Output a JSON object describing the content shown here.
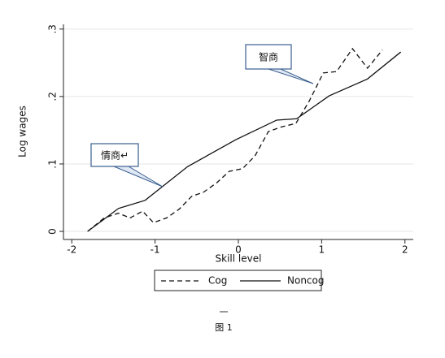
{
  "chart_data": {
    "type": "line",
    "x_label": "Skill level",
    "y_label": "Log wages",
    "xlim": [
      -2.1,
      2.1
    ],
    "ylim": [
      -0.012,
      0.307
    ],
    "xticks": [
      -2,
      -1,
      0,
      1,
      2
    ],
    "yticks": [
      0,
      {
        "value": 0.1,
        "label": ".1"
      },
      {
        "value": 0.2,
        "label": ".2"
      },
      {
        "value": 0.3,
        "label": ".3"
      }
    ],
    "grid": true,
    "series": [
      {
        "name": "Cog",
        "color": "#111111",
        "dash": true,
        "x": [
          -1.81,
          -1.61,
          -1.44,
          -1.3,
          -1.15,
          -1.02,
          -0.86,
          -0.71,
          -0.56,
          -0.42,
          -0.26,
          -0.11,
          0.05,
          0.2,
          0.36,
          0.52,
          0.69,
          0.85,
          1.02,
          1.18,
          1.37,
          1.55,
          1.73
        ],
        "values": [
          0,
          0.02,
          0.027,
          0.02,
          0.03,
          0.013,
          0.02,
          0.033,
          0.052,
          0.058,
          0.072,
          0.089,
          0.093,
          0.112,
          0.148,
          0.155,
          0.16,
          0.193,
          0.235,
          0.237,
          0.271,
          0.242,
          0.269
        ]
      },
      {
        "name": "Noncog",
        "color": "#111111",
        "dash": false,
        "x": [
          -1.81,
          -1.44,
          -1.12,
          -0.61,
          -0.03,
          0.46,
          0.7,
          1.09,
          1.55,
          1.95
        ],
        "values": [
          0,
          0.034,
          0.046,
          0.096,
          0.136,
          0.165,
          0.167,
          0.201,
          0.226,
          0.266
        ]
      }
    ],
    "annotations": [
      {
        "text": "智商"
      },
      {
        "text": "情商↵"
      }
    ],
    "caption": "图 1"
  }
}
